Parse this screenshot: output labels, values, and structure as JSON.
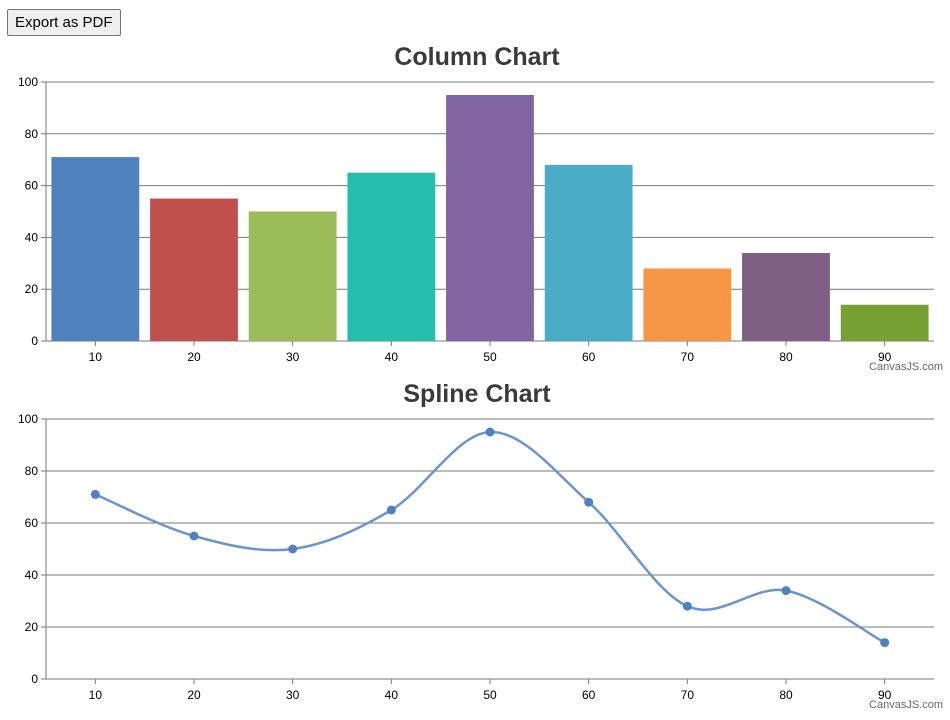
{
  "toolbar": {
    "export_label": "Export as PDF"
  },
  "credit": "CanvasJS.com",
  "chart_data": [
    {
      "type": "bar",
      "title": "Column Chart",
      "x": [
        10,
        20,
        30,
        40,
        50,
        60,
        70,
        80,
        90
      ],
      "values": [
        71,
        55,
        50,
        65,
        95,
        68,
        28,
        34,
        14
      ],
      "colors": [
        "#4F81BC",
        "#C0504E",
        "#9BBB58",
        "#23BFAA",
        "#8064A1",
        "#4AACC5",
        "#F79647",
        "#7F6084",
        "#77A033"
      ],
      "xlim": [
        5,
        95
      ],
      "ylim": [
        0,
        100
      ],
      "yticks": [
        0,
        20,
        40,
        60,
        80,
        100
      ],
      "xticks": [
        10,
        20,
        30,
        40,
        50,
        60,
        70,
        80,
        90
      ],
      "grid": true
    },
    {
      "type": "line",
      "smooth": true,
      "title": "Spline Chart",
      "x": [
        10,
        20,
        30,
        40,
        50,
        60,
        70,
        80,
        90
      ],
      "values": [
        71,
        55,
        50,
        65,
        95,
        68,
        28,
        34,
        14
      ],
      "color": "#4F81BC",
      "xlim": [
        5,
        95
      ],
      "ylim": [
        0,
        100
      ],
      "yticks": [
        0,
        20,
        40,
        60,
        80,
        100
      ],
      "xticks": [
        10,
        20,
        30,
        40,
        50,
        60,
        70,
        80,
        90
      ],
      "grid": true
    }
  ]
}
